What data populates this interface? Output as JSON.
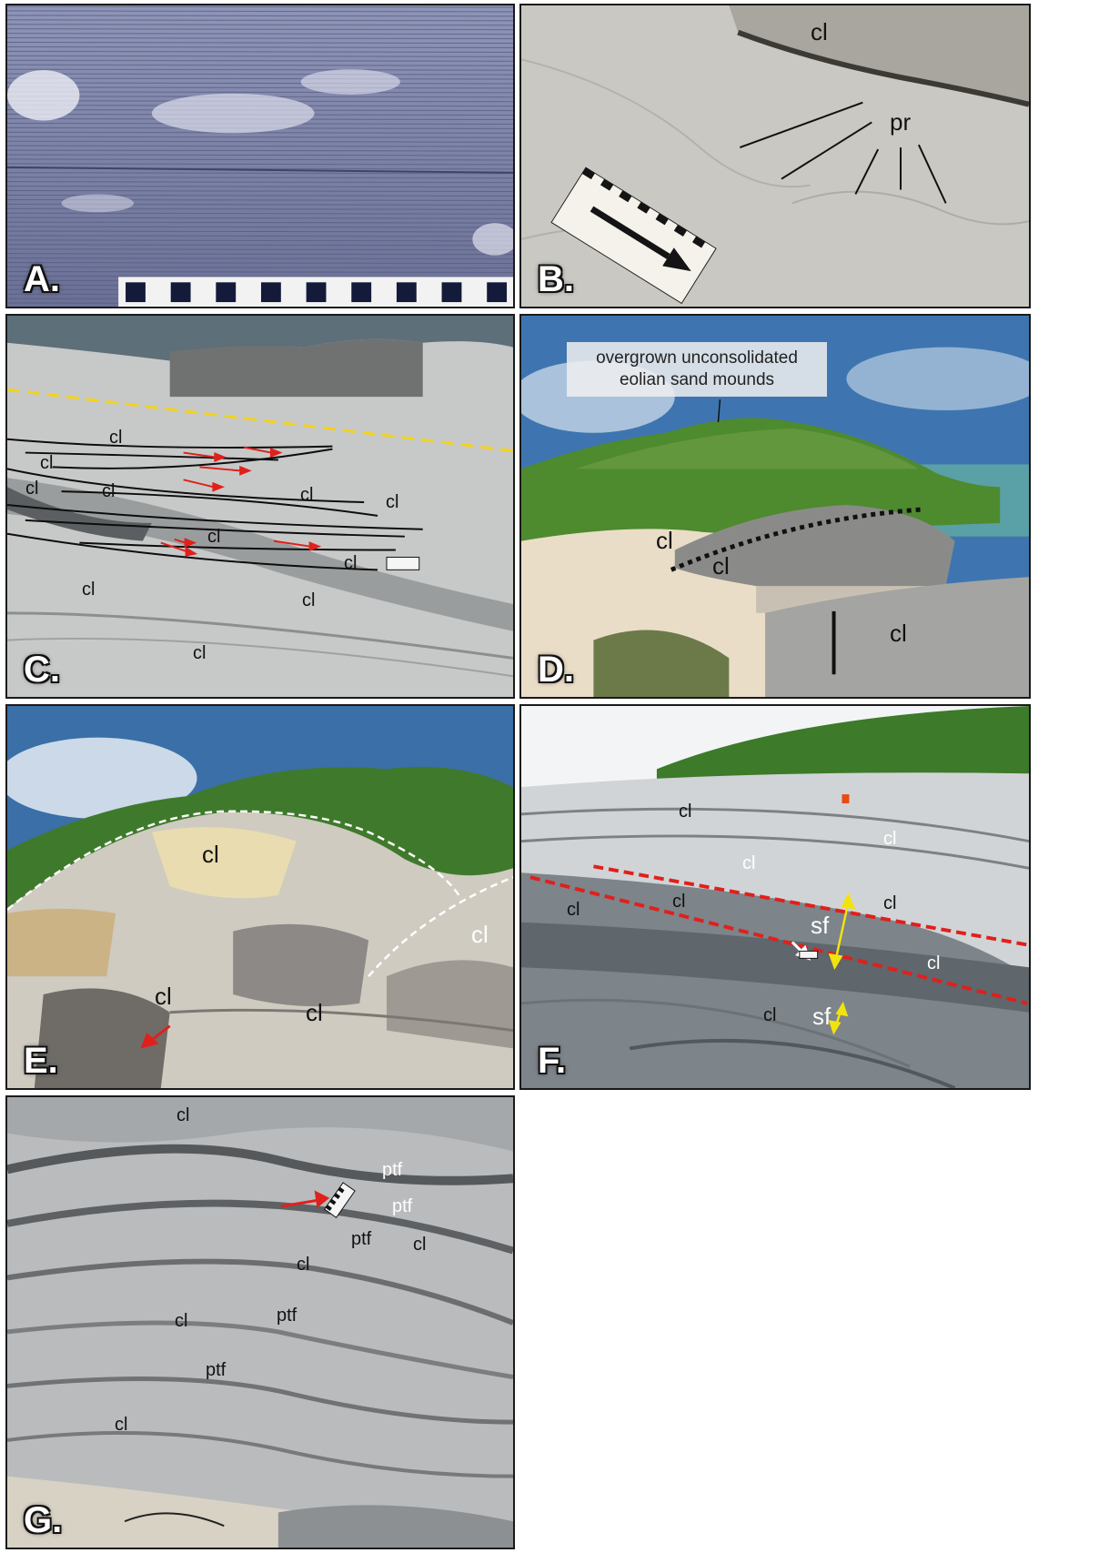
{
  "panels": {
    "a": {
      "label": "A."
    },
    "b": {
      "label": "B.",
      "annotations": [
        "cl",
        "pr"
      ]
    },
    "c": {
      "label": "C.",
      "annotations": [
        "cl"
      ]
    },
    "d": {
      "label": "D.",
      "annotations": [
        "cl"
      ],
      "callout": [
        "overgrown unconsolidated",
        "eolian sand mounds"
      ]
    },
    "e": {
      "label": "E.",
      "annotations": [
        "cl"
      ]
    },
    "f": {
      "label": "F.",
      "annotations": [
        "cl",
        "sf"
      ]
    },
    "g": {
      "label": "G.",
      "annotations": [
        "cl",
        "ptf"
      ]
    }
  },
  "colors": {
    "border": "#1a1a1a",
    "yellow_dashed": "#f2d21b",
    "red": "#e0201c",
    "white_dashed": "#ffffff",
    "sky": "#3d6fa8"
  }
}
